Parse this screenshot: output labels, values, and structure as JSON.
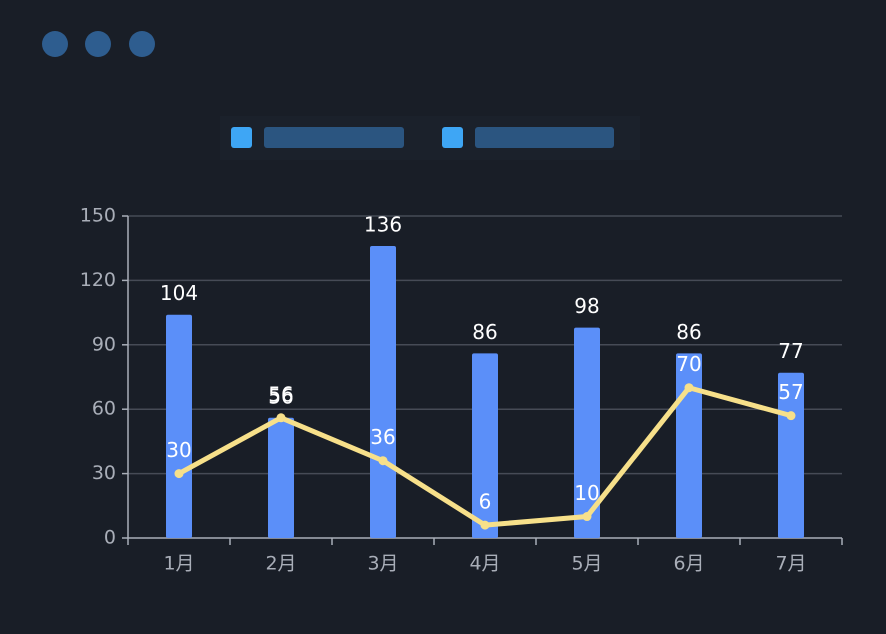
{
  "chart_data": {
    "type": "bar",
    "categories": [
      "1月",
      "2月",
      "3月",
      "4月",
      "5月",
      "6月",
      "7月"
    ],
    "series": [
      {
        "type": "bar",
        "color": "#5b8ff9",
        "values": [
          104,
          56,
          136,
          86,
          98,
          86,
          77
        ]
      },
      {
        "type": "line",
        "color": "#f7e08a",
        "values": [
          30,
          56,
          36,
          6,
          10,
          70,
          57
        ]
      }
    ],
    "ylim": [
      0,
      150
    ],
    "yticks": [
      0,
      30,
      60,
      90,
      120,
      150
    ],
    "grid": true
  }
}
